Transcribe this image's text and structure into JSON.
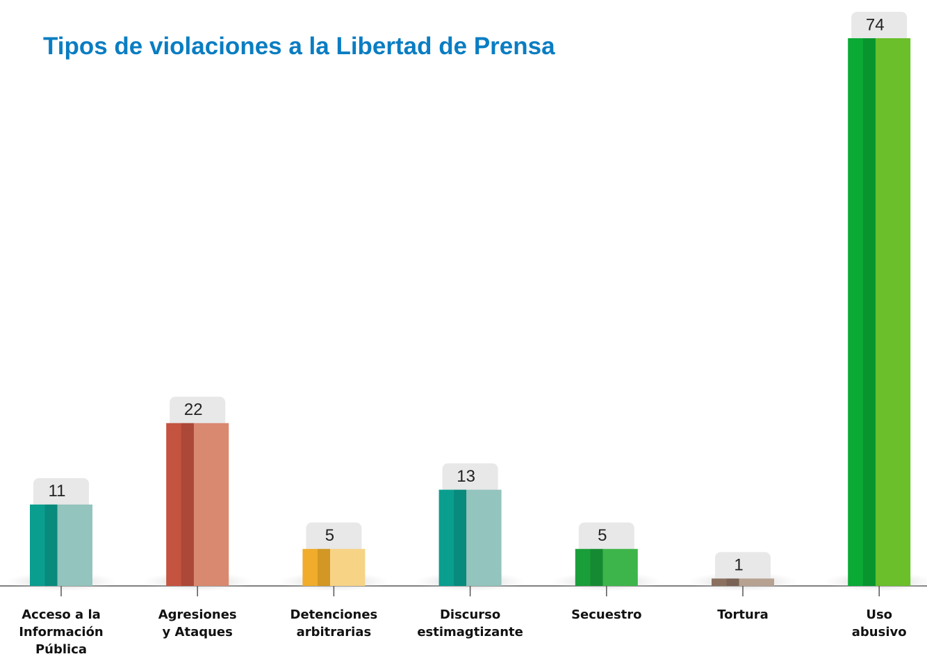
{
  "chart_data": {
    "type": "bar",
    "title": "Tipos de violaciones a la Libertad de Prensa",
    "categories": [
      "Acceso a la\nInformación\nPública",
      "Agresiones\ny Ataques",
      "Detenciones\narbitrarias",
      "Discurso\nestimagtizante",
      "Secuestro",
      "Tortura",
      "Uso\nabusivo"
    ],
    "values": [
      11,
      22,
      5,
      13,
      5,
      1,
      74
    ],
    "colors": [
      "#0a9e8f",
      "#c4533f",
      "#f0ac2a",
      "#0a9e8f",
      "#1a9e3a",
      "#8b7060",
      "#0aaa35"
    ],
    "side_colors": [
      "#93c4bd",
      "#d9896f",
      "#f7d386",
      "#93c4bd",
      "#3db54a",
      "#b7a291",
      "#6abf2a"
    ]
  }
}
